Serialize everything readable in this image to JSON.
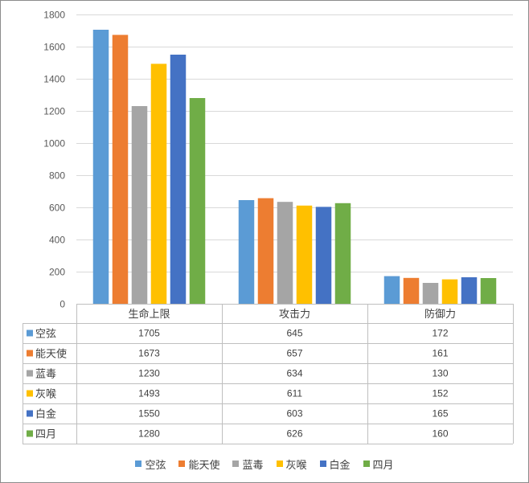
{
  "chart_data": {
    "type": "bar",
    "categories": [
      "生命上限",
      "攻击力",
      "防御力"
    ],
    "series": [
      {
        "name": "空弦",
        "color": "#5B9BD5",
        "values": [
          1705,
          645,
          172
        ]
      },
      {
        "name": "能天使",
        "color": "#ED7D31",
        "values": [
          1673,
          657,
          161
        ]
      },
      {
        "name": "蓝毒",
        "color": "#A5A5A5",
        "values": [
          1230,
          634,
          130
        ]
      },
      {
        "name": "灰喉",
        "color": "#FFC000",
        "values": [
          1493,
          611,
          152
        ]
      },
      {
        "name": "白金",
        "color": "#4472C4",
        "values": [
          1550,
          603,
          165
        ]
      },
      {
        "name": "四月",
        "color": "#70AD47",
        "values": [
          1280,
          626,
          160
        ]
      }
    ],
    "ylim": [
      0,
      1800
    ],
    "yticks": [
      0,
      200,
      400,
      600,
      800,
      1000,
      1200,
      1400,
      1600,
      1800
    ],
    "grid": true,
    "legend": "bottom",
    "data_table": true
  }
}
